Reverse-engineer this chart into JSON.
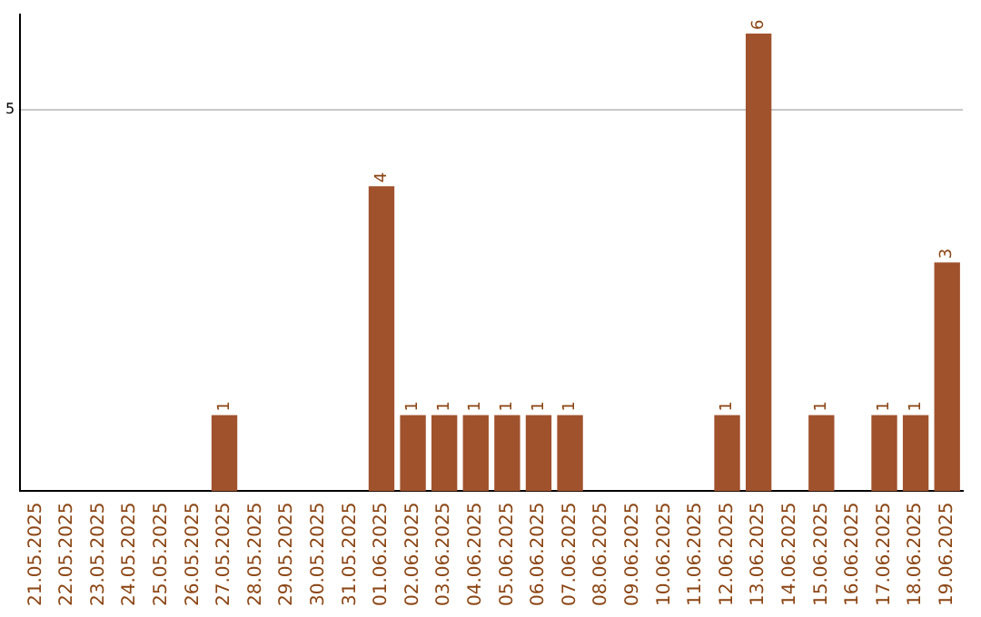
{
  "chart_data": {
    "type": "bar",
    "categories": [
      "21.05.2025",
      "22.05.2025",
      "23.05.2025",
      "24.05.2025",
      "25.05.2025",
      "26.05.2025",
      "27.05.2025",
      "28.05.2025",
      "29.05.2025",
      "30.05.2025",
      "31.05.2025",
      "01.06.2025",
      "02.06.2025",
      "03.06.2025",
      "04.06.2025",
      "05.06.2025",
      "06.06.2025",
      "07.06.2025",
      "08.06.2025",
      "09.06.2025",
      "10.06.2025",
      "11.06.2025",
      "12.06.2025",
      "13.06.2025",
      "14.06.2025",
      "15.06.2025",
      "16.06.2025",
      "17.06.2025",
      "18.06.2025",
      "19.06.2025"
    ],
    "values": [
      0,
      0,
      0,
      0,
      0,
      0,
      1,
      0,
      0,
      0,
      0,
      4,
      1,
      1,
      1,
      1,
      1,
      1,
      0,
      0,
      0,
      0,
      1,
      6,
      0,
      1,
      0,
      1,
      1,
      3
    ],
    "value_labels": [
      null,
      null,
      null,
      null,
      null,
      null,
      "1",
      null,
      null,
      null,
      null,
      "4",
      "1",
      "1",
      "1",
      "1",
      "1",
      "1",
      null,
      null,
      null,
      null,
      "1",
      "6",
      null,
      "1",
      null,
      "1",
      "1",
      "3"
    ],
    "color": "#a0522d",
    "ylim": [
      0,
      6.25
    ],
    "yticks": [
      5
    ],
    "grid": "y",
    "legend": false
  }
}
